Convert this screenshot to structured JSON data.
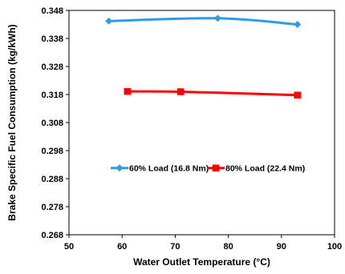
{
  "chart_data": {
    "type": "line",
    "title": "",
    "xlabel": "Water Outlet Temperature (°C)",
    "ylabel": "Brake Specific Fuel Consumption (kg/kWh)",
    "xlim": [
      50,
      100
    ],
    "ylim": [
      0.268,
      0.348
    ],
    "xticks": [
      50,
      60,
      70,
      80,
      90,
      100
    ],
    "yticks": [
      0.268,
      0.278,
      0.288,
      0.298,
      0.308,
      0.318,
      0.328,
      0.338,
      0.348
    ],
    "grid": false,
    "legend_position": "center",
    "series": [
      {
        "name": "60% Load (16.8 Nm)",
        "color": "#2E9BEA",
        "marker": "diamond",
        "x": [
          57.5,
          78,
          93
        ],
        "y": [
          0.3442,
          0.3452,
          0.343
        ]
      },
      {
        "name": "80% Load (22.4 Nm)",
        "color": "#FF0000",
        "marker": "square",
        "x": [
          61,
          71,
          93
        ],
        "y": [
          0.3191,
          0.319,
          0.3178
        ]
      }
    ]
  }
}
